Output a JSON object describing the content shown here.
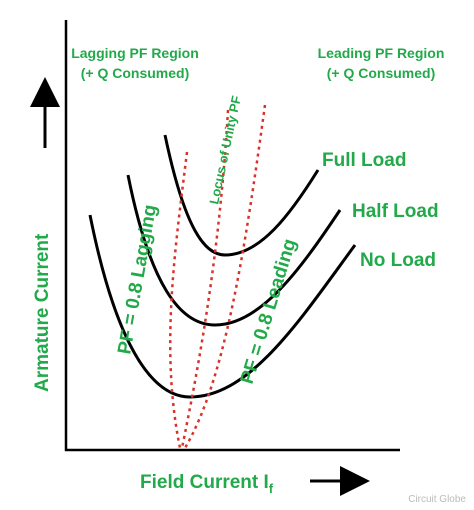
{
  "regions": {
    "lagging": {
      "title": "Lagging PF Region",
      "note": "(+ Q Consumed)"
    },
    "leading": {
      "title": "Leading PF Region",
      "note": "(+ Q Consumed)"
    }
  },
  "curves": {
    "full": "Full Load",
    "half": "Half Load",
    "none": "No Load"
  },
  "loci": {
    "unity": "Locus of Unity PF",
    "lagging": "PF = 0.8 Lagging",
    "leading": "PF = 0.8 Leading"
  },
  "axes": {
    "y": "Armature Current",
    "x": "Field Current I",
    "x_subscript": "f"
  },
  "credit": "Circuit Globe"
}
